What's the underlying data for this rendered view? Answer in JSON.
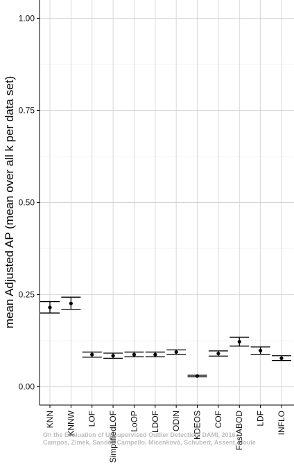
{
  "chart_data": {
    "type": "scatter",
    "ylabel": "mean Adjusted AP (mean over all k per data set)",
    "ylim": [
      -0.05,
      1.05
    ],
    "yticks": [
      "0.00",
      "0.25",
      "0.50",
      "0.75",
      "1.00"
    ],
    "ytick_values": [
      0,
      0.25,
      0.5,
      0.75,
      1.0
    ],
    "categories": [
      "KNN",
      "KNNW",
      "LOF",
      "SimplifiedLOF",
      "LoOP",
      "LDOF",
      "ODIN",
      "KDEOS",
      "COF",
      "FastABOD",
      "LDF",
      "INFLO"
    ],
    "series": [
      {
        "mean": [
          0.215,
          0.226,
          0.087,
          0.084,
          0.087,
          0.087,
          0.094,
          0.029,
          0.09,
          0.122,
          0.098,
          0.077
        ],
        "lower": [
          0.2,
          0.21,
          0.08,
          0.077,
          0.081,
          0.081,
          0.088,
          0.027,
          0.083,
          0.11,
          0.088,
          0.071
        ],
        "upper": [
          0.231,
          0.243,
          0.094,
          0.091,
          0.094,
          0.094,
          0.1,
          0.031,
          0.097,
          0.134,
          0.108,
          0.084
        ]
      }
    ],
    "grid": true,
    "colors": {
      "point": "#000000",
      "grid": "#d4d4d4",
      "axis": "#000000"
    }
  },
  "watermark": {
    "line1": "On the Evaluation of Unsupervised Outlier Detection, DAMI, 2016.",
    "line2": "Campos, Zimek, Sander, Campello, Micenková, Schubert, Assent, Houle"
  }
}
